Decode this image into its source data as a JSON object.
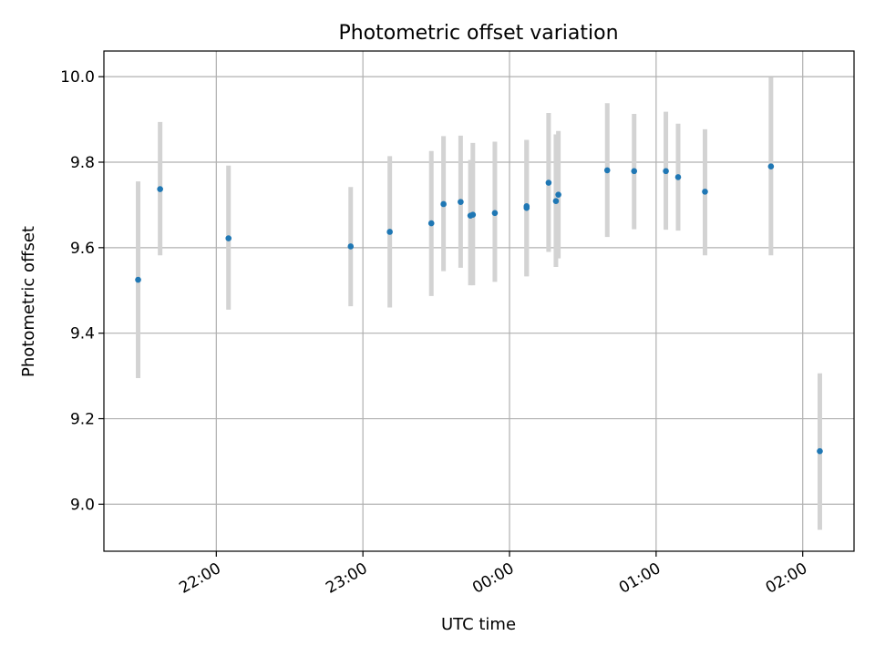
{
  "chart_data": {
    "type": "scatter",
    "title": "Photometric offset variation",
    "xlabel": "UTC time",
    "ylabel": "Photometric offset",
    "xlim": [
      "21:14",
      "02:21"
    ],
    "ylim": [
      8.89,
      10.06
    ],
    "x_ticks": [
      "22:00",
      "23:00",
      "00:00",
      "01:00",
      "02:00"
    ],
    "y_ticks": [
      "9.0",
      "9.2",
      "9.4",
      "9.6",
      "9.8",
      "10.0"
    ],
    "grid": true,
    "colors": {
      "points": "#1f77b4",
      "error_bars": "#d3d3d3",
      "grid": "#b0b0b0"
    },
    "points": [
      {
        "x": "21:28",
        "y": 9.525,
        "y_low": 9.295,
        "y_high": 9.755
      },
      {
        "x": "21:37",
        "y": 9.737,
        "y_low": 9.582,
        "y_high": 9.894
      },
      {
        "x": "22:05",
        "y": 9.622,
        "y_low": 9.455,
        "y_high": 9.792
      },
      {
        "x": "22:55",
        "y": 9.603,
        "y_low": 9.463,
        "y_high": 9.742
      },
      {
        "x": "23:11",
        "y": 9.637,
        "y_low": 9.46,
        "y_high": 9.814
      },
      {
        "x": "23:28",
        "y": 9.657,
        "y_low": 9.487,
        "y_high": 9.826
      },
      {
        "x": "23:33",
        "y": 9.702,
        "y_low": 9.545,
        "y_high": 9.861
      },
      {
        "x": "23:40",
        "y": 9.707,
        "y_low": 9.553,
        "y_high": 9.862
      },
      {
        "x": "23:44",
        "y": 9.675,
        "y_low": 9.512,
        "y_high": 9.805
      },
      {
        "x": "23:45",
        "y": 9.677,
        "y_low": 9.512,
        "y_high": 9.845
      },
      {
        "x": "23:54",
        "y": 9.681,
        "y_low": 9.52,
        "y_high": 9.848
      },
      {
        "x": "00:07",
        "y": 9.693,
        "y_low": 9.533,
        "y_high": 9.852
      },
      {
        "x": "00:07",
        "y": 9.697,
        "y_low": 9.533,
        "y_high": 9.852
      },
      {
        "x": "00:16",
        "y": 9.752,
        "y_low": 9.59,
        "y_high": 9.915
      },
      {
        "x": "00:19",
        "y": 9.709,
        "y_low": 9.555,
        "y_high": 9.865
      },
      {
        "x": "00:20",
        "y": 9.724,
        "y_low": 9.575,
        "y_high": 9.873
      },
      {
        "x": "00:40",
        "y": 9.781,
        "y_low": 9.625,
        "y_high": 9.938
      },
      {
        "x": "00:51",
        "y": 9.779,
        "y_low": 9.643,
        "y_high": 9.913
      },
      {
        "x": "01:04",
        "y": 9.779,
        "y_low": 9.642,
        "y_high": 9.918
      },
      {
        "x": "01:09",
        "y": 9.765,
        "y_low": 9.64,
        "y_high": 9.89
      },
      {
        "x": "01:20",
        "y": 9.731,
        "y_low": 9.582,
        "y_high": 9.877
      },
      {
        "x": "01:47",
        "y": 9.79,
        "y_low": 9.582,
        "y_high": 9.999
      },
      {
        "x": "02:07",
        "y": 9.124,
        "y_low": 8.94,
        "y_high": 9.306
      }
    ]
  }
}
